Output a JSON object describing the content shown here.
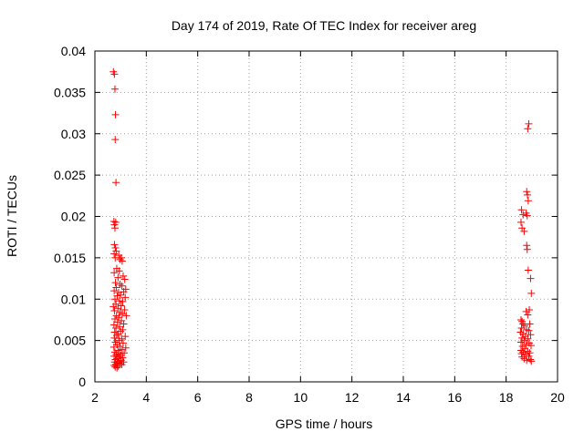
{
  "chart_data": {
    "type": "scatter",
    "title": "Day 174 of 2019, Rate Of TEC Index for receiver areg",
    "xlabel": "GPS time / hours",
    "ylabel": "ROTI / TECUs",
    "xlim": [
      2,
      20
    ],
    "ylim": [
      0,
      0.04
    ],
    "xticks": [
      2,
      4,
      6,
      8,
      10,
      12,
      14,
      16,
      18,
      20
    ],
    "xtick_labels": [
      "2",
      "4",
      "6",
      "8",
      "10",
      "12",
      "14",
      "16",
      "18",
      "20"
    ],
    "yticks": [
      0,
      0.005,
      0.01,
      0.015,
      0.02,
      0.025,
      0.03,
      0.035,
      0.04
    ],
    "ytick_labels": [
      "0",
      "0.005",
      "0.01",
      "0.015",
      "0.02",
      "0.025",
      "0.03",
      "0.035",
      "0.04"
    ],
    "grid": true,
    "marker": "+",
    "marker_color": "#ff0000",
    "series": [
      {
        "name": "ROTI",
        "points": [
          [
            2.72,
            0.0375
          ],
          [
            2.76,
            0.0372
          ],
          [
            2.78,
            0.0354
          ],
          [
            2.8,
            0.0323
          ],
          [
            2.79,
            0.0293
          ],
          [
            2.82,
            0.0241
          ],
          [
            2.74,
            0.0194
          ],
          [
            2.76,
            0.019
          ],
          [
            2.78,
            0.0186
          ],
          [
            2.81,
            0.0193
          ],
          [
            2.76,
            0.0166
          ],
          [
            2.8,
            0.0162
          ],
          [
            2.83,
            0.0158
          ],
          [
            2.75,
            0.0155
          ],
          [
            2.79,
            0.015
          ],
          [
            2.93,
            0.0153
          ],
          [
            2.98,
            0.0148
          ],
          [
            3.03,
            0.015
          ],
          [
            3.06,
            0.0146
          ],
          [
            2.85,
            0.0137
          ],
          [
            2.95,
            0.0134
          ],
          [
            2.75,
            0.0132
          ],
          [
            3.1,
            0.0128
          ],
          [
            3.16,
            0.0124
          ],
          [
            2.9,
            0.0126
          ],
          [
            2.8,
            0.012
          ],
          [
            2.98,
            0.0118
          ],
          [
            3.05,
            0.0116
          ],
          [
            2.83,
            0.0114
          ],
          [
            3.2,
            0.0112
          ],
          [
            2.75,
            0.011
          ],
          [
            2.92,
            0.0108
          ],
          [
            3.12,
            0.0109
          ],
          [
            3.0,
            0.0105
          ],
          [
            2.87,
            0.0104
          ],
          [
            3.18,
            0.0102
          ],
          [
            2.78,
            0.01
          ],
          [
            2.95,
            0.0098
          ],
          [
            3.08,
            0.0097
          ],
          [
            2.82,
            0.0094
          ],
          [
            3.02,
            0.0092
          ],
          [
            2.72,
            0.0091
          ],
          [
            2.9,
            0.0089
          ],
          [
            3.15,
            0.0087
          ],
          [
            2.76,
            0.0086
          ],
          [
            2.98,
            0.0084
          ],
          [
            3.06,
            0.0082
          ],
          [
            2.84,
            0.008
          ],
          [
            3.22,
            0.008
          ],
          [
            2.93,
            0.0078
          ],
          [
            2.78,
            0.0076
          ],
          [
            3.03,
            0.0074
          ],
          [
            2.88,
            0.0072
          ],
          [
            3.12,
            0.007
          ],
          [
            2.74,
            0.0069
          ],
          [
            2.96,
            0.0067
          ],
          [
            2.82,
            0.0065
          ],
          [
            3.08,
            0.0063
          ],
          [
            3.0,
            0.0061
          ],
          [
            2.77,
            0.006
          ],
          [
            2.91,
            0.0058
          ],
          [
            2.85,
            0.0056
          ],
          [
            3.18,
            0.0055
          ],
          [
            2.76,
            0.0053
          ],
          [
            3.04,
            0.0052
          ],
          [
            2.94,
            0.005
          ],
          [
            2.8,
            0.0048
          ],
          [
            3.1,
            0.0047
          ],
          [
            2.86,
            0.0045
          ],
          [
            2.98,
            0.0043
          ],
          [
            2.74,
            0.0042
          ],
          [
            3.2,
            0.0041
          ],
          [
            3.06,
            0.0039
          ],
          [
            2.9,
            0.0038
          ],
          [
            2.78,
            0.0036
          ],
          [
            3.14,
            0.0035
          ],
          [
            2.96,
            0.0034
          ],
          [
            2.83,
            0.0033
          ],
          [
            3.0,
            0.0032
          ],
          [
            2.75,
            0.0031
          ],
          [
            2.92,
            0.003
          ],
          [
            3.08,
            0.0029
          ],
          [
            2.86,
            0.0028
          ],
          [
            2.8,
            0.0027
          ],
          [
            3.02,
            0.0026
          ],
          [
            2.94,
            0.0025
          ],
          [
            2.77,
            0.0024
          ],
          [
            3.12,
            0.0024
          ],
          [
            2.88,
            0.0023
          ],
          [
            2.98,
            0.0022
          ],
          [
            2.82,
            0.0021
          ],
          [
            3.05,
            0.0021
          ],
          [
            2.75,
            0.002
          ],
          [
            2.91,
            0.0019
          ],
          [
            2.79,
            0.0018
          ],
          [
            2.86,
            0.0017
          ],
          [
            18.88,
            0.0312
          ],
          [
            18.84,
            0.0306
          ],
          [
            18.8,
            0.023
          ],
          [
            18.83,
            0.0226
          ],
          [
            18.86,
            0.0219
          ],
          [
            18.6,
            0.0208
          ],
          [
            18.66,
            0.0202
          ],
          [
            18.78,
            0.0204
          ],
          [
            18.82,
            0.0201
          ],
          [
            18.58,
            0.0193
          ],
          [
            18.62,
            0.0186
          ],
          [
            18.7,
            0.0182
          ],
          [
            18.8,
            0.0165
          ],
          [
            18.82,
            0.016
          ],
          [
            18.86,
            0.0135
          ],
          [
            18.95,
            0.0125
          ],
          [
            18.98,
            0.0107
          ],
          [
            18.9,
            0.0087
          ],
          [
            18.78,
            0.0085
          ],
          [
            18.84,
            0.0081
          ],
          [
            18.58,
            0.0075
          ],
          [
            18.62,
            0.0073
          ],
          [
            18.66,
            0.007
          ],
          [
            18.92,
            0.007
          ],
          [
            18.72,
            0.0068
          ],
          [
            18.6,
            0.0065
          ],
          [
            18.8,
            0.0063
          ],
          [
            18.88,
            0.0062
          ],
          [
            18.56,
            0.006
          ],
          [
            18.66,
            0.0058
          ],
          [
            18.95,
            0.0057
          ],
          [
            18.75,
            0.0055
          ],
          [
            18.62,
            0.0053
          ],
          [
            18.84,
            0.0052
          ],
          [
            18.7,
            0.005
          ],
          [
            18.58,
            0.0048
          ],
          [
            18.9,
            0.0047
          ],
          [
            18.78,
            0.0045
          ],
          [
            18.64,
            0.0043
          ],
          [
            18.97,
            0.0044
          ],
          [
            18.72,
            0.004
          ],
          [
            18.58,
            0.0038
          ],
          [
            18.84,
            0.0037
          ],
          [
            18.66,
            0.0036
          ],
          [
            18.92,
            0.0035
          ],
          [
            18.6,
            0.0034
          ],
          [
            18.76,
            0.0033
          ],
          [
            18.88,
            0.0031
          ],
          [
            18.62,
            0.003
          ],
          [
            18.7,
            0.0028
          ],
          [
            18.94,
            0.0027
          ],
          [
            18.8,
            0.0026
          ],
          [
            18.98,
            0.0025
          ]
        ]
      }
    ]
  }
}
